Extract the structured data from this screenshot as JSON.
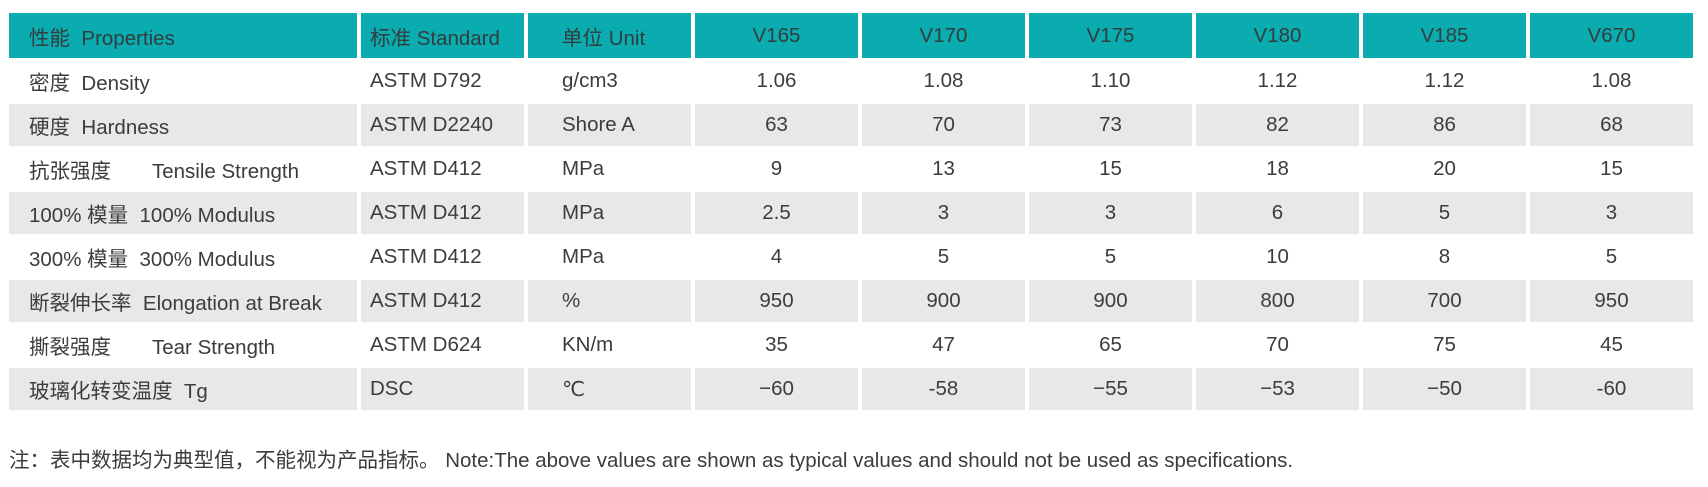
{
  "table": {
    "accent_color": "#0aacb0",
    "stripe_color": "#e8e8e8",
    "columns": [
      {
        "label": "性能  Properties"
      },
      {
        "label": "标准 Standard"
      },
      {
        "label": "单位 Unit"
      },
      {
        "label": "V165"
      },
      {
        "label": "V170"
      },
      {
        "label": "V175"
      },
      {
        "label": "V180"
      },
      {
        "label": "V185"
      },
      {
        "label": "V670"
      }
    ],
    "rows": [
      {
        "property": "密度  Density",
        "standard": "ASTM D792",
        "unit": "g/cm3",
        "values": [
          "1.06",
          "1.08",
          "1.10",
          "1.12",
          "1.12",
          "1.08"
        ]
      },
      {
        "property": "硬度  Hardness",
        "standard": "ASTM D2240",
        "unit": "Shore A",
        "values": [
          "63",
          "70",
          "73",
          "82",
          "86",
          "68"
        ]
      },
      {
        "property": "抗张强度　　Tensile Strength",
        "standard": "ASTM D412",
        "unit": "MPa",
        "values": [
          "9",
          "13",
          "15",
          "18",
          "20",
          "15"
        ]
      },
      {
        "property": "100% 模量  100% Modulus",
        "standard": "ASTM D412",
        "unit": "MPa",
        "values": [
          "2.5",
          "3",
          "3",
          "6",
          "5",
          "3"
        ]
      },
      {
        "property": "300% 模量  300% Modulus",
        "standard": "ASTM D412",
        "unit": "MPa",
        "values": [
          "4",
          "5",
          "5",
          "10",
          "8",
          "5"
        ]
      },
      {
        "property": "断裂伸长率  Elongation at Break",
        "standard": "ASTM D412",
        "unit": "%",
        "values": [
          "950",
          "900",
          "900",
          "800",
          "700",
          "950"
        ]
      },
      {
        "property": "撕裂强度　　Tear Strength",
        "standard": "ASTM D624",
        "unit": "KN/m",
        "values": [
          "35",
          "47",
          "65",
          "70",
          "75",
          "45"
        ]
      },
      {
        "property": "玻璃化转变温度  Tg",
        "standard": "DSC",
        "unit": "℃",
        "values": [
          "−60",
          "-58",
          "−55",
          "−53",
          "−50",
          "-60"
        ]
      }
    ]
  },
  "footnote": "注：表中数据均为典型值，不能视为产品指标。 Note:The above values are shown as typical values and should not be used as specifications."
}
